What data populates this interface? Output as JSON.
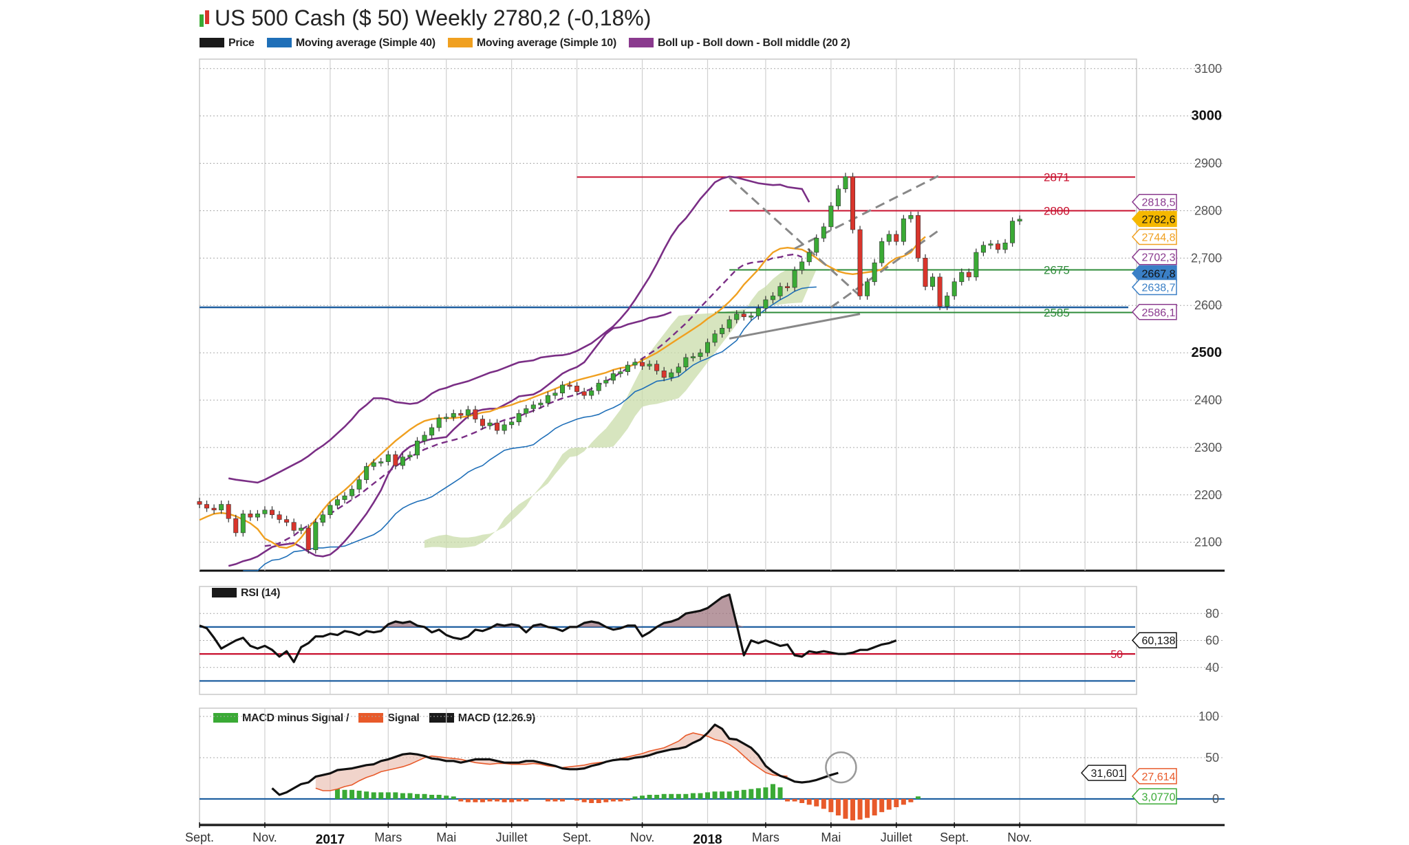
{
  "header": {
    "title": "US 500 Cash ($ 50)  Weekly 2780,2 (-0,18%)"
  },
  "legend": [
    {
      "label": "Price",
      "color": "#1a1a1a"
    },
    {
      "label": "Moving average (Simple 40)",
      "color": "#1f6fb8"
    },
    {
      "label": "Moving average (Simple 10)",
      "color": "#f0a020"
    },
    {
      "label": "Boll up - Boll down - Boll middle (20 2)",
      "color": "#8a3a8e"
    }
  ],
  "rsi_legend": {
    "label": "RSI (14)",
    "color": "#1a1a1a"
  },
  "macd_legend": [
    {
      "label": "MACD minus Signal /",
      "color": "#3aaa35"
    },
    {
      "label": "Signal",
      "color": "#e85a2a"
    },
    {
      "label": "MACD (12.26.9)",
      "color": "#1a1a1a"
    }
  ],
  "x_axis": {
    "month_labels": [
      "Sept.",
      "Nov.",
      "Mars",
      "Mai",
      "Juillet",
      "Sept.",
      "Nov.",
      "Mars",
      "Mai",
      "Juillet",
      "Sept.",
      "Nov."
    ],
    "month_weeks": [
      0,
      9,
      26,
      34,
      43,
      52,
      61,
      78,
      87,
      96,
      104,
      113
    ],
    "year_labels": [
      "2017",
      "2018"
    ],
    "year_weeks": [
      18,
      70
    ],
    "grid_weeks": [
      0,
      9,
      18,
      26,
      34,
      43,
      52,
      61,
      70,
      78,
      87,
      96,
      104,
      113,
      122
    ]
  },
  "chart_data": [
    {
      "type": "candlestick",
      "name": "price",
      "ylim": [
        2040,
        3120
      ],
      "y_ticks": [
        {
          "v": 3100,
          "label": "3100",
          "bold": false
        },
        {
          "v": 3000,
          "label": "3000",
          "bold": true
        },
        {
          "v": 2900,
          "label": "2900",
          "bold": false
        },
        {
          "v": 2800,
          "label": "2800",
          "bold": false
        },
        {
          "v": 2700,
          "label": "2,700",
          "bold": false
        },
        {
          "v": 2600,
          "label": "2600",
          "bold": false
        },
        {
          "v": 2500,
          "label": "2500",
          "bold": true
        },
        {
          "v": 2400,
          "label": "2400",
          "bold": false
        },
        {
          "v": 2300,
          "label": "2300",
          "bold": false
        },
        {
          "v": 2200,
          "label": "2200",
          "bold": false
        },
        {
          "v": 2100,
          "label": "2100",
          "bold": false
        }
      ],
      "candles_close": [
        2180,
        2172,
        2168,
        2180,
        2150,
        2120,
        2160,
        2153,
        2160,
        2168,
        2158,
        2148,
        2142,
        2125,
        2130,
        2084,
        2142,
        2158,
        2178,
        2190,
        2198,
        2212,
        2232,
        2260,
        2268,
        2270,
        2285,
        2262,
        2280,
        2284,
        2314,
        2326,
        2342,
        2362,
        2364,
        2372,
        2368,
        2380,
        2360,
        2346,
        2352,
        2336,
        2348,
        2354,
        2372,
        2382,
        2390,
        2394,
        2410,
        2415,
        2432,
        2430,
        2418,
        2410,
        2420,
        2436,
        2442,
        2456,
        2460,
        2474,
        2480,
        2472,
        2476,
        2462,
        2448,
        2458,
        2470,
        2490,
        2492,
        2500,
        2522,
        2540,
        2552,
        2570,
        2582,
        2576,
        2578,
        2594,
        2612,
        2620,
        2640,
        2638,
        2674,
        2692,
        2712,
        2742,
        2766,
        2810,
        2846,
        2872,
        2760,
        2620,
        2650,
        2690,
        2735,
        2750,
        2735,
        2783,
        2790,
        2700,
        2640,
        2660,
        2598,
        2620,
        2650,
        2670,
        2660,
        2712,
        2727,
        2730,
        2718,
        2732,
        2778,
        2782
      ],
      "sma10": [
        2147,
        2154,
        2160,
        2162,
        2160,
        2155,
        2148,
        2140,
        2128,
        2108,
        2100,
        2090,
        2088,
        2094,
        2110,
        2130,
        2148,
        2168,
        2186,
        2198,
        2210,
        2224,
        2240,
        2256,
        2272,
        2286,
        2300,
        2314,
        2326,
        2338,
        2348,
        2356,
        2360,
        2362,
        2362,
        2362,
        2364,
        2366,
        2370,
        2374,
        2376,
        2382,
        2386,
        2390,
        2396,
        2400,
        2406,
        2412,
        2418,
        2424,
        2430,
        2436,
        2442,
        2446,
        2450,
        2454,
        2458,
        2464,
        2468,
        2470,
        2476,
        2484,
        2492,
        2500,
        2510,
        2520,
        2530,
        2540,
        2550,
        2560,
        2572,
        2582,
        2594,
        2608,
        2624,
        2644,
        2660,
        2676,
        2696,
        2712,
        2720,
        2722,
        2720,
        2718,
        2710,
        2700,
        2688,
        2680,
        2672,
        2668,
        2666,
        2668,
        2670,
        2672,
        2676,
        2690,
        2700,
        2704,
        2712,
        2732,
        2745
      ],
      "sma40": [
        2040,
        2040,
        2040,
        2054,
        2062,
        2064,
        2070,
        2080,
        2082,
        2085,
        2088,
        2088,
        2090,
        2090,
        2092,
        2098,
        2104,
        2110,
        2116,
        2126,
        2142,
        2160,
        2172,
        2180,
        2186,
        2190,
        2196,
        2206,
        2216,
        2226,
        2236,
        2248,
        2256,
        2262,
        2274,
        2284,
        2294,
        2298,
        2300,
        2302,
        2306,
        2318,
        2328,
        2340,
        2348,
        2354,
        2360,
        2364,
        2366,
        2370,
        2378,
        2384,
        2392,
        2404,
        2418,
        2424,
        2432,
        2440,
        2442,
        2446,
        2450,
        2462,
        2474,
        2482,
        2488,
        2496,
        2502,
        2514,
        2526,
        2550,
        2568,
        2580,
        2592,
        2602,
        2612,
        2620,
        2630,
        2636,
        2638,
        2639
      ],
      "boll_upper": [
        2235,
        2232,
        2230,
        2228,
        2226,
        2232,
        2240,
        2248,
        2256,
        2264,
        2272,
        2282,
        2294,
        2304,
        2316,
        2330,
        2344,
        2360,
        2378,
        2390,
        2404,
        2404,
        2402,
        2396,
        2394,
        2392,
        2394,
        2402,
        2414,
        2422,
        2426,
        2432,
        2436,
        2440,
        2446,
        2452,
        2458,
        2462,
        2468,
        2474,
        2480,
        2482,
        2484,
        2490,
        2492,
        2494,
        2495,
        2498,
        2504,
        2512,
        2520,
        2532,
        2544,
        2556,
        2572,
        2590,
        2612,
        2636,
        2660,
        2688,
        2718,
        2746,
        2768,
        2784,
        2804,
        2825,
        2842,
        2860,
        2868,
        2872,
        2870,
        2866,
        2862,
        2858,
        2856,
        2854,
        2855,
        2850,
        2848,
        2846,
        2818
      ],
      "boll_lower": [
        2050,
        2054,
        2060,
        2064,
        2070,
        2080,
        2090,
        2094,
        2096,
        2098,
        2090,
        2080,
        2072,
        2070,
        2074,
        2086,
        2102,
        2120,
        2140,
        2160,
        2184,
        2210,
        2244,
        2268,
        2290,
        2302,
        2308,
        2314,
        2318,
        2320,
        2322,
        2338,
        2352,
        2366,
        2376,
        2380,
        2382,
        2382,
        2390,
        2398,
        2408,
        2410,
        2412,
        2420,
        2432,
        2444,
        2456,
        2464,
        2470,
        2480,
        2500,
        2520,
        2540,
        2552,
        2554,
        2560,
        2564,
        2568,
        2574,
        2576,
        2580,
        2586
      ],
      "boll_middle": [
        2092,
        2094,
        2098,
        2106,
        2114,
        2126,
        2136,
        2144,
        2152,
        2160,
        2170,
        2180,
        2190,
        2200,
        2212,
        2224,
        2236,
        2248,
        2260,
        2270,
        2280,
        2288,
        2296,
        2302,
        2308,
        2312,
        2316,
        2320,
        2326,
        2332,
        2340,
        2346,
        2352,
        2358,
        2362,
        2366,
        2372,
        2378,
        2384,
        2392,
        2398,
        2404,
        2408,
        2412,
        2418,
        2424,
        2432,
        2440,
        2448,
        2458,
        2468,
        2478,
        2488,
        2498,
        2508,
        2520,
        2534,
        2548,
        2562,
        2578,
        2596,
        2612,
        2628,
        2644,
        2660,
        2676,
        2686,
        2690,
        2692,
        2694,
        2700,
        2702,
        2706,
        2708,
        2702
      ],
      "cloud_upper": [
        2104,
        2110,
        2114,
        2116,
        2112,
        2110,
        2110,
        2112,
        2116,
        2118,
        2124,
        2132,
        2146,
        2160,
        2176,
        2200,
        2218,
        2238,
        2262,
        2286,
        2298,
        2300,
        2300,
        2300,
        2300,
        2300,
        2302,
        2320,
        2340,
        2366,
        2386,
        2390,
        2392,
        2396,
        2400,
        2404,
        2420,
        2440,
        2460,
        2480,
        2500,
        2520,
        2540,
        2560,
        2584,
        2610,
        2630,
        2640,
        2656,
        2668,
        2676,
        2676,
        2678,
        2676,
        2676
      ],
      "cloud_lower": [
        2088,
        2090,
        2090,
        2088,
        2088,
        2088,
        2090,
        2092,
        2100,
        2112,
        2126,
        2150,
        2166,
        2180,
        2190,
        2200,
        2212,
        2224,
        2244,
        2262,
        2280,
        2282,
        2292,
        2310,
        2326,
        2340,
        2360,
        2380,
        2410,
        2440,
        2470,
        2500,
        2520,
        2540,
        2560,
        2578,
        2580,
        2581,
        2582,
        2583,
        2584,
        2586,
        2588,
        2590,
        2592,
        2594,
        2596,
        2598,
        2600,
        2602,
        2604,
        2605,
        2606
      ],
      "horizontal_levels": [
        {
          "value": 2871,
          "label": "2871",
          "color": "#c8102e",
          "start_week": 52
        },
        {
          "value": 2800,
          "label": "2800",
          "color": "#c8102e",
          "start_week": 73
        },
        {
          "value": 2675,
          "label": "2675",
          "color": "#2e8b3a",
          "start_week": 73
        },
        {
          "value": 2585,
          "label": "2585",
          "color": "#2e8b3a",
          "start_week": 71
        },
        {
          "value": 2596,
          "label": "",
          "color": "#1f5fa0",
          "start_week": 0
        }
      ],
      "trendlines": [
        {
          "from": [
            73,
            2870
          ],
          "to": [
            91,
            2620
          ],
          "style": "dashed",
          "color": "#888888"
        },
        {
          "from": [
            82,
            2720
          ],
          "to": [
            102,
            2875
          ],
          "style": "dashed",
          "color": "#888888"
        },
        {
          "from": [
            87,
            2596
          ],
          "to": [
            102,
            2760
          ],
          "style": "dashed",
          "color": "#888888"
        },
        {
          "from": [
            73,
            2530
          ],
          "to": [
            91,
            2582
          ],
          "style": "solid",
          "color": "#888888"
        }
      ],
      "value_tags": [
        {
          "value": 2818.5,
          "label": "2818,5",
          "color": "#8a3a8e",
          "style": "outline"
        },
        {
          "value": 2782.6,
          "label": "2782,6",
          "color": "#f5b800",
          "style": "filled"
        },
        {
          "value": 2744.8,
          "label": "2744,8",
          "color": "#f0a020",
          "style": "outline"
        },
        {
          "value": 2702.3,
          "label": "2702,3",
          "color": "#8a3a8e",
          "style": "outline"
        },
        {
          "value": 2667.8,
          "label": "2667,8",
          "color": "#3a7fc6",
          "style": "filled"
        },
        {
          "value": 2638.7,
          "label": "2638,7",
          "color": "#3a7fc6",
          "style": "outline"
        },
        {
          "value": 2586.1,
          "label": "2586,1",
          "color": "#8a3a8e",
          "style": "outline"
        }
      ]
    },
    {
      "type": "line",
      "name": "RSI (14)",
      "ylim": [
        20,
        100
      ],
      "y_ticks": [
        {
          "v": 80,
          "label": "80"
        },
        {
          "v": 60,
          "label": "60"
        },
        {
          "v": 40,
          "label": "40"
        }
      ],
      "levels": [
        {
          "value": 70,
          "color": "#1f5fa0",
          "label": ""
        },
        {
          "value": 50,
          "color": "#c8102e",
          "label": "50"
        },
        {
          "value": 30,
          "color": "#1f5fa0",
          "label": ""
        }
      ],
      "values": [
        71,
        69,
        62,
        54,
        57,
        60,
        62,
        56,
        54,
        56,
        53,
        48,
        52,
        44,
        55,
        58,
        63,
        63,
        65,
        64,
        67,
        66,
        64,
        67,
        66,
        67,
        72,
        74,
        73,
        74,
        71,
        70,
        66,
        68,
        64,
        62,
        61,
        63,
        68,
        67,
        69,
        72,
        71,
        72,
        71,
        66,
        71,
        72,
        70,
        69,
        67,
        70,
        70,
        73,
        74,
        73,
        70,
        68,
        69,
        71,
        71,
        63,
        66,
        70,
        73,
        74,
        76,
        80,
        81,
        82,
        84,
        88,
        92,
        94,
        72,
        49,
        60,
        58,
        60,
        58,
        56,
        57,
        49,
        48,
        52,
        51,
        52,
        51,
        50,
        50,
        51,
        53,
        53,
        55,
        57,
        58,
        60
      ],
      "tag": {
        "value": 60.138,
        "label": "60,138"
      }
    },
    {
      "type": "line",
      "name": "MACD (12.26.9)",
      "ylim": [
        -30,
        110
      ],
      "y_ticks": [
        {
          "v": 100,
          "label": "100"
        },
        {
          "v": 50,
          "label": "50"
        },
        {
          "v": 0,
          "label": "0"
        }
      ],
      "macd": [
        13,
        5,
        8,
        13,
        18,
        20,
        27,
        29,
        31,
        35,
        36,
        37,
        39,
        41,
        42,
        46,
        48,
        51,
        54,
        55,
        54,
        52,
        49,
        48,
        46,
        46,
        44,
        46,
        48,
        48,
        48,
        46,
        44,
        44,
        44,
        46,
        46,
        44,
        42,
        40,
        37,
        36,
        36,
        37,
        40,
        42,
        45,
        47,
        48,
        48,
        50,
        51,
        53,
        56,
        58,
        60,
        61,
        63,
        68,
        72,
        80,
        90,
        85,
        73,
        72,
        67,
        62,
        53,
        40,
        33,
        28,
        25,
        21,
        20,
        21,
        23,
        26,
        29,
        31.601
      ],
      "signal": [
        13,
        10,
        10,
        12,
        15,
        17,
        22,
        26,
        29,
        33,
        35,
        37,
        39,
        42,
        46,
        50,
        52,
        51,
        50,
        49,
        48,
        46,
        44,
        43,
        42,
        43,
        43,
        42,
        42,
        42,
        43,
        42,
        40,
        39,
        38,
        39,
        40,
        41,
        43,
        44,
        45,
        47,
        49,
        51,
        53,
        55,
        58,
        60,
        62,
        66,
        70,
        77,
        80,
        78,
        76,
        72,
        70,
        66,
        60,
        52,
        44,
        38,
        32,
        29,
        28,
        27.614
      ],
      "histogram": [
        0,
        0,
        0,
        0,
        0,
        0,
        0,
        0,
        0,
        0,
        0,
        0,
        0,
        0,
        0,
        0,
        0,
        0,
        0,
        12,
        11,
        11,
        10,
        9,
        8,
        8,
        8,
        8,
        7,
        7,
        6,
        6,
        5,
        5,
        4,
        3,
        -3,
        -4,
        -4,
        -4,
        -3,
        -3,
        -4,
        -4,
        -3,
        -3,
        0,
        0,
        -3,
        -3,
        -3,
        0,
        -2,
        -4,
        -5,
        -5,
        -4,
        -3,
        -3,
        -2,
        3,
        4,
        5,
        5,
        6,
        6,
        6,
        6,
        7,
        7,
        8,
        9,
        9,
        9,
        10,
        11,
        12,
        13,
        14,
        18,
        14,
        -3,
        -3,
        -5,
        -7,
        -9,
        -12,
        -16,
        -20,
        -24,
        -26,
        -25,
        -23,
        -20,
        -16,
        -13,
        -10,
        -7,
        -4,
        3.077
      ],
      "tags": [
        {
          "value": 31.601,
          "label": "31,601",
          "color": "#1a1a1a"
        },
        {
          "value": 27.614,
          "label": "27,614",
          "color": "#e85a2a"
        },
        {
          "value": 3.077,
          "label": "3,0770",
          "color": "#3aaa35"
        }
      ]
    }
  ]
}
